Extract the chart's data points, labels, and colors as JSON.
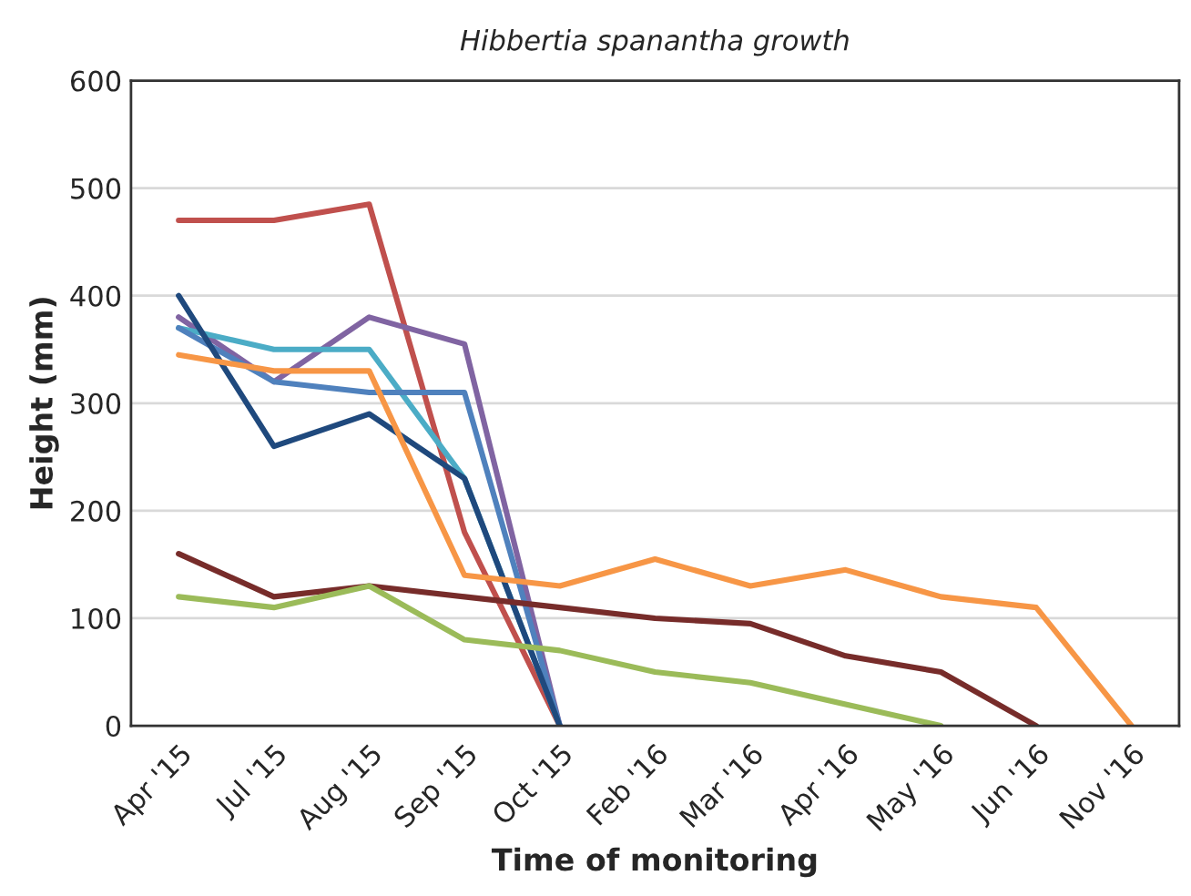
{
  "chart_data": {
    "type": "line",
    "title": "Hibbertia spanantha growth",
    "xlabel": "Time of monitoring",
    "ylabel": "Height (mm)",
    "categories": [
      "Apr '15",
      "Jul '15",
      "Aug '15",
      "Sep '15",
      "Oct '15",
      "Feb '16",
      "Mar '16",
      "Apr '16",
      "May '16",
      "Jun '16",
      "Nov '16"
    ],
    "series": [
      {
        "color": "#c0504d",
        "values": [
          470,
          470,
          485,
          180,
          0,
          null,
          null,
          null,
          null,
          null,
          null
        ]
      },
      {
        "color": "#8064a2",
        "values": [
          380,
          320,
          380,
          355,
          0,
          null,
          null,
          null,
          null,
          null,
          null
        ]
      },
      {
        "color": "#4bacc6",
        "values": [
          370,
          350,
          350,
          230,
          0,
          null,
          null,
          null,
          null,
          null,
          null
        ]
      },
      {
        "color": "#4f81bd",
        "values": [
          370,
          320,
          310,
          310,
          0,
          null,
          null,
          null,
          null,
          null,
          null
        ]
      },
      {
        "color": "#1f497d",
        "values": [
          400,
          260,
          290,
          230,
          0,
          null,
          null,
          null,
          null,
          null,
          null
        ]
      },
      {
        "color": "#f79646",
        "values": [
          345,
          330,
          330,
          140,
          130,
          155,
          130,
          145,
          120,
          110,
          0
        ]
      },
      {
        "color": "#772c2a",
        "values": [
          160,
          120,
          130,
          120,
          110,
          100,
          95,
          65,
          50,
          0,
          null
        ]
      },
      {
        "color": "#9bbb59",
        "values": [
          120,
          110,
          130,
          80,
          70,
          50,
          40,
          20,
          0,
          null,
          null
        ]
      }
    ],
    "ylim": [
      0,
      600
    ],
    "yticks": [
      0,
      100,
      200,
      300,
      400,
      500,
      600
    ],
    "grid": "y",
    "legend": false
  }
}
